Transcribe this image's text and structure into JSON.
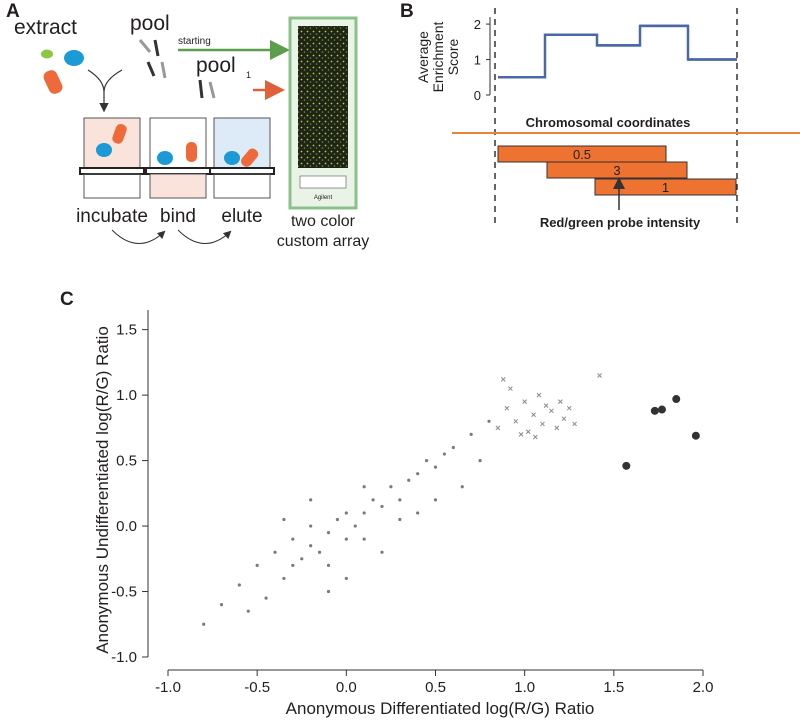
{
  "panels": [
    "A",
    "B",
    "C"
  ],
  "diagram": {
    "extract": "extract",
    "pool": "pool",
    "starting": "starting",
    "pool_again": "pool",
    "round": "1",
    "steps": [
      "incubate",
      "bind",
      "elute"
    ],
    "array": [
      "two color",
      "custom array"
    ],
    "array_brand": "Agilent"
  },
  "probes": {
    "heading": "Chromosomal coordinates",
    "intensities": [
      0.5,
      3,
      1
    ],
    "caption": "Red/green probe intensity"
  },
  "chart_data": [
    {
      "type": "step",
      "y_label": [
        "Average",
        "Enrichment",
        "Score"
      ],
      "color": "#4a68a6",
      "categories": [
        null,
        null,
        null,
        null,
        null
      ],
      "values": [
        0.5,
        1.7,
        1.4,
        1.95,
        1
      ],
      "ylim": [
        0,
        2.2
      ],
      "yticks": [
        0,
        1,
        2
      ]
    },
    {
      "type": "scatter",
      "x_label": "Anonymous Differentiated log(R/G) Ratio",
      "y_label": "Anonymous Undifferentiated log(R/G) Ratio",
      "xlim": [
        -1.0,
        2.0
      ],
      "ylim": [
        -1.0,
        1.65
      ],
      "xticks": [
        {
          "value": -1,
          "label": "-1.0"
        },
        {
          "value": -0.5,
          "label": "-0.5"
        },
        {
          "value": 0,
          "label": "0.0"
        },
        {
          "value": 0.5,
          "label": "0.5"
        },
        {
          "value": 1,
          "label": "1.0"
        },
        {
          "value": 1.5,
          "label": "1.5"
        },
        {
          "value": 2,
          "label": "2.0"
        }
      ],
      "yticks": [
        {
          "value": -1,
          "label": "-1.0"
        },
        {
          "value": -0.5,
          "label": "-0.5"
        },
        {
          "value": 0,
          "label": "0.0"
        },
        {
          "value": 0.5,
          "label": "0.5"
        },
        {
          "value": 1,
          "label": "1.0"
        },
        {
          "value": 1.5,
          "label": "1.5"
        }
      ],
      "series": [
        {
          "marker": "dot",
          "color": "#7a7a7a",
          "x": [
            -0.6,
            -0.5,
            -0.45,
            -0.4,
            -0.35,
            -0.3,
            -0.3,
            -0.25,
            -0.2,
            -0.2,
            -0.15,
            -0.1,
            -0.1,
            -0.05,
            0,
            0,
            0.05,
            0.1,
            0.1,
            0.15,
            0.2,
            0.25,
            0.3,
            0.35,
            0.4,
            0.45,
            0.5,
            0.55,
            0.6,
            0.7,
            0.8,
            -0.7,
            -0.8,
            -0.55,
            0.2,
            0.3,
            -0.1,
            0.0,
            0.4,
            0.65,
            -0.35,
            0.1,
            0.5,
            -0.2,
            0.75
          ],
          "values": [
            -0.45,
            -0.3,
            -0.55,
            -0.2,
            -0.4,
            -0.1,
            -0.3,
            -0.25,
            0,
            -0.15,
            -0.2,
            -0.05,
            -0.3,
            0.05,
            -0.1,
            0.1,
            0,
            0.1,
            -0.1,
            0.2,
            0.15,
            0.3,
            0.2,
            0.35,
            0.4,
            0.5,
            0.45,
            0.55,
            0.6,
            0.7,
            0.8,
            -0.6,
            -0.75,
            -0.65,
            -0.2,
            0.05,
            -0.5,
            -0.4,
            0.1,
            0.3,
            0.05,
            0.3,
            0.2,
            0.2,
            0.5
          ]
        },
        {
          "marker": "cross",
          "color": "#8a8a8a",
          "x": [
            0.85,
            0.9,
            0.92,
            0.95,
            1.0,
            1.02,
            1.05,
            1.08,
            1.1,
            1.12,
            1.15,
            1.18,
            1.2,
            1.22,
            1.25,
            1.28,
            0.88,
            0.98,
            1.06,
            1.42
          ],
          "values": [
            0.75,
            0.9,
            1.05,
            0.8,
            0.95,
            0.72,
            0.85,
            1.0,
            0.78,
            0.92,
            0.88,
            0.75,
            0.95,
            0.82,
            0.9,
            0.78,
            1.12,
            0.7,
            0.68,
            1.15
          ]
        },
        {
          "marker": "big-dot",
          "color": "#333333",
          "x": [
            1.57,
            1.73,
            1.77,
            1.85,
            1.96
          ],
          "values": [
            0.46,
            0.88,
            0.89,
            0.97,
            0.69
          ]
        }
      ]
    }
  ]
}
